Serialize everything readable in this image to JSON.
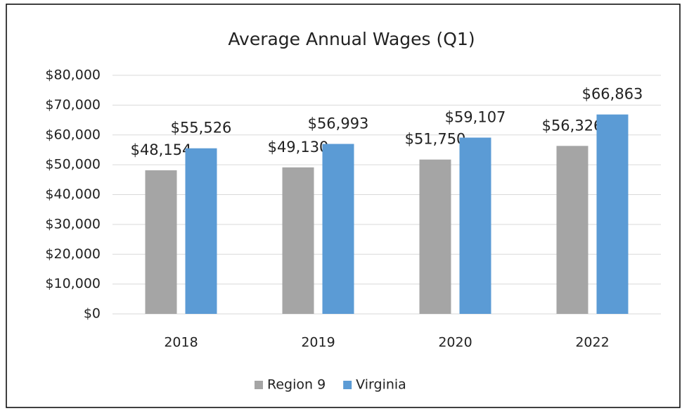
{
  "chart_data": {
    "type": "bar",
    "title": "Average Annual Wages (Q1)",
    "categories": [
      "2018",
      "2019",
      "2020",
      "2022"
    ],
    "series": [
      {
        "name": "Region 9",
        "color": "#a5a5a5",
        "values": [
          48154,
          49130,
          51750,
          56326
        ],
        "value_labels": [
          "$48,154",
          "$49,130",
          "$51,750",
          "$56,326"
        ]
      },
      {
        "name": "Virginia",
        "color": "#5b9bd5",
        "values": [
          55526,
          56993,
          59107,
          66863
        ],
        "value_labels": [
          "$55,526",
          "$56,993",
          "$59,107",
          "$66,863"
        ]
      }
    ],
    "ylim": [
      0,
      80000
    ],
    "yticks": [
      {
        "value": 0,
        "label": "$0"
      },
      {
        "value": 10000,
        "label": "$10,000"
      },
      {
        "value": 20000,
        "label": "$20,000"
      },
      {
        "value": 30000,
        "label": "$30,000"
      },
      {
        "value": 40000,
        "label": "$40,000"
      },
      {
        "value": 50000,
        "label": "$50,000"
      },
      {
        "value": 60000,
        "label": "$60,000"
      },
      {
        "value": 70000,
        "label": "$70,000"
      },
      {
        "value": 80000,
        "label": "$80,000"
      }
    ],
    "grid": true,
    "legend": "bottom"
  }
}
